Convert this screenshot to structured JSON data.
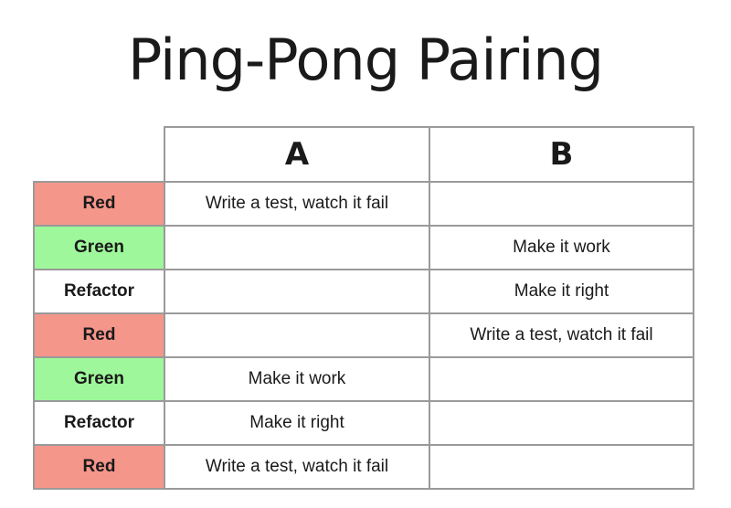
{
  "title": "Ping-Pong Pairing",
  "columns": [
    "A",
    "B"
  ],
  "rows": [
    {
      "phase": "Red",
      "a": "Write a test, watch it fail",
      "b": ""
    },
    {
      "phase": "Green",
      "a": "",
      "b": "Make it work"
    },
    {
      "phase": "Refactor",
      "a": "",
      "b": "Make it right"
    },
    {
      "phase": "Red",
      "a": "",
      "b": "Write a test, watch it fail"
    },
    {
      "phase": "Green",
      "a": "Make it work",
      "b": ""
    },
    {
      "phase": "Refactor",
      "a": "Make it right",
      "b": ""
    },
    {
      "phase": "Red",
      "a": "Write a test, watch it fail",
      "b": ""
    }
  ],
  "colors": {
    "Red": "#f4968a",
    "Green": "#9ef79a",
    "Refactor": "#ffffff"
  }
}
